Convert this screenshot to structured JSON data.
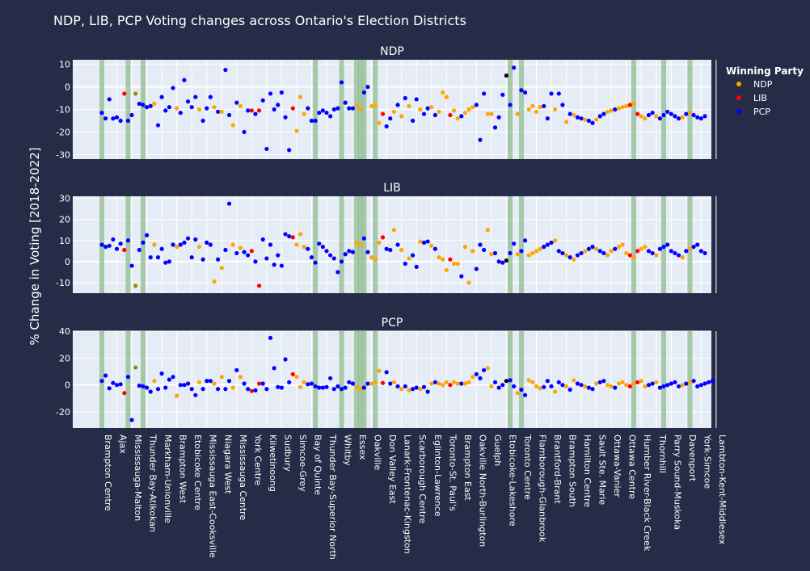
{
  "title": "NDP, LIB, PCP Voting changes across Ontario's Election Districts",
  "ylabel": "% Change in Voting [2018-2022]",
  "legend": {
    "title": "Winning Party",
    "items": [
      {
        "name": "NDP",
        "color": "#ffa500"
      },
      {
        "name": "LIB",
        "color": "#ff0000"
      },
      {
        "name": "PCP",
        "color": "#0000ff"
      }
    ]
  },
  "colors": {
    "background": "#262c47",
    "plot_bg": "#e5ecf6",
    "highlight": "#8fbc8f",
    "other": "#000000"
  },
  "chart_data": {
    "type": "scatter",
    "districts": [
      "Brampton Centre",
      "Ajax",
      "Mississauga-Malton",
      "Thunder Bay-Atikokan",
      "Markham-Unionville",
      "Brampton West",
      "Etobicoke Centre",
      "Mississauga East-Cooksville",
      "Niagara West",
      "Mississauga Centre",
      "York Centre",
      "Kiiwetinoong",
      "Sudbury",
      "Simcoe-Grey",
      "Bay of Quinte",
      "Thunder Bay-Superior North",
      "Whitby",
      "Essex",
      "Oakville",
      "Don Valley East",
      "Lanark-Frontenac-Kingston",
      "Scarborough Centre",
      "Eglinton-Lawrence",
      "Toronto-St. Paul's",
      "Brampton East",
      "Oakville North-Burlington",
      "Guelph",
      "Etobicoke-Lakeshore",
      "Toronto Centre",
      "Flamborough-Glanbrook",
      "Brantford-Brant",
      "Brampton South",
      "Hamilton Centre",
      "Sault Ste. Marie",
      "Ottawa-Vanier",
      "Ottawa Centre",
      "Humber River-Black Creek",
      "Thornhill",
      "Parry Sound-Muskoka",
      "Davenport",
      "York-Simcoe",
      "Lambton-Kent-Middlesex"
    ],
    "winners": [
      "P",
      "P",
      "P",
      "P",
      "P",
      "P",
      "L",
      "P",
      "P",
      "O",
      "P",
      "P",
      "P",
      "P",
      "N",
      "P",
      "P",
      "P",
      "P",
      "P",
      "N",
      "P",
      "P",
      "P",
      "P",
      "P",
      "N",
      "P",
      "P",
      "P",
      "N",
      "P",
      "N",
      "P",
      "P",
      "N",
      "P",
      "N",
      "P",
      "P",
      "L",
      "P",
      "L",
      "P",
      "P",
      "P",
      "P",
      "P",
      "P",
      "P",
      "P",
      "L",
      "N",
      "N",
      "N",
      "P",
      "P",
      "P",
      "P",
      "P",
      "P",
      "P",
      "P",
      "P",
      "P",
      "P",
      "P",
      "P",
      "N",
      "N",
      "P",
      "P",
      "N",
      "N",
      "N",
      "L",
      "P",
      "P",
      "N",
      "P",
      "N",
      "P",
      "N",
      "P",
      "P",
      "N",
      "P",
      "P",
      "N",
      "P",
      "N",
      "N",
      "N",
      "L",
      "N",
      "N",
      "P",
      "N",
      "N",
      "N",
      "P",
      "P",
      "P",
      "N",
      "N",
      "P",
      "P",
      "P",
      "X",
      "P",
      "P",
      "N",
      "P",
      "P",
      "N",
      "N",
      "N",
      "N",
      "P",
      "P",
      "P",
      "N",
      "P",
      "P",
      "N",
      "P",
      "N",
      "P",
      "P",
      "N",
      "P",
      "P",
      "N",
      "P",
      "P",
      "N",
      "N",
      "P",
      "N",
      "N",
      "N",
      "L",
      "N",
      "L",
      "N",
      "N",
      "P",
      "P",
      "N",
      "P",
      "P",
      "P",
      "P",
      "P",
      "P",
      "N",
      "P",
      "N",
      "P",
      "P",
      "P",
      "P",
      "P",
      "P"
    ],
    "highlights": [
      0,
      7,
      11,
      57,
      64,
      68,
      69,
      70,
      73,
      109,
      112,
      142,
      150,
      157
    ],
    "series": [
      {
        "name": "NDP",
        "ylim": [
          -32,
          12
        ],
        "yticks": [
          10,
          0,
          -10,
          -20,
          -30
        ],
        "values": [
          -11.5,
          -14,
          -5.5,
          -14,
          -13.5,
          -15,
          -3,
          -15,
          -12.5,
          -3,
          -7.5,
          -8,
          -9,
          -8.5,
          -7.5,
          -17,
          -4.5,
          -10.5,
          -9,
          -0.5,
          -9.5,
          -11.5,
          3,
          -6.5,
          -9,
          -4.5,
          -10,
          -15,
          -9.5,
          -4.5,
          -9,
          -11,
          -11,
          7.5,
          -12.5,
          -17,
          -7,
          -8.5,
          -20,
          -10.5,
          -10.5,
          -12,
          -10.5,
          -6,
          -27.5,
          -3,
          -10,
          -8,
          -2.5,
          -13.5,
          -28,
          -9.5,
          -19.5,
          -4.5,
          -12,
          -9.5,
          -15,
          -15,
          -11.5,
          -10.5,
          -11.5,
          -13,
          -10,
          -9.5,
          2,
          -7,
          -9.5,
          -9.5,
          -8,
          -10,
          -2.5,
          0,
          -8.5,
          -8,
          -16,
          -12,
          -17.5,
          -14,
          -11,
          -8,
          -13,
          -5,
          -8.5,
          -15,
          -5.5,
          -10,
          -12,
          -9.5,
          -9,
          -12.5,
          -11,
          -2.5,
          -4.5,
          -12.5,
          -10.5,
          -14,
          -13,
          -11.5,
          -10,
          -9,
          -8,
          -23.5,
          -3,
          -12,
          -12,
          -18,
          -13.5,
          -3.5,
          5,
          -8,
          8.5,
          -12,
          -1.5,
          -2.5,
          -10,
          -8.5,
          -11,
          -9,
          -8.5,
          -14,
          -3,
          -10,
          -3,
          -8,
          -15.5,
          -12,
          -12.5,
          -13.5,
          -14,
          -14.5,
          -15,
          -16,
          -14.5,
          -13,
          -12,
          -11,
          -10.5,
          -10,
          -9.5,
          -9,
          -8.5,
          -8,
          -7.5,
          -12,
          -13,
          -14,
          -12.5,
          -11.5,
          -13,
          -14,
          -12.5,
          -11,
          -12,
          -13,
          -14,
          -13.5,
          -12,
          -11.5,
          -12.5,
          -13.5,
          -14,
          -13
        ]
      },
      {
        "name": "LIB",
        "ylim": [
          -15,
          31
        ],
        "yticks": [
          30,
          20,
          10,
          0,
          -10
        ],
        "values": [
          8,
          7,
          7.5,
          10.5,
          6,
          8.5,
          5.5,
          10,
          -2,
          -11.5,
          5.5,
          9,
          12.5,
          2,
          8,
          2,
          6,
          -0.5,
          0,
          8,
          7,
          8,
          9,
          11,
          2,
          10.5,
          7,
          1,
          9,
          8,
          -9.5,
          1,
          -3,
          5.5,
          27.5,
          8,
          4,
          6.5,
          4.5,
          3,
          5,
          0,
          -11.5,
          10.5,
          1.5,
          8,
          -1.5,
          3,
          -2,
          13,
          12,
          11.5,
          8,
          13,
          7,
          6,
          2,
          -0.5,
          8.5,
          7,
          5,
          3,
          1.5,
          -5,
          0,
          3.5,
          5,
          4.5,
          9,
          8,
          11,
          4.5,
          2,
          1,
          9,
          11.5,
          6,
          5.5,
          15,
          8,
          5.5,
          -1,
          1.5,
          3,
          -2.5,
          9.5,
          9,
          9.5,
          7.5,
          6,
          2,
          1,
          -4,
          1,
          -1,
          -1,
          -7,
          7,
          -10,
          5,
          -3.5,
          8,
          5.5,
          15,
          3.5,
          4,
          0,
          -0.5,
          0.5,
          4,
          8.5,
          3.5,
          5,
          10,
          3,
          4,
          5,
          6,
          7,
          8,
          9,
          10,
          5,
          4,
          3,
          2,
          1,
          3,
          4,
          5,
          6,
          7,
          6,
          5,
          4,
          3,
          5,
          6,
          7,
          8,
          4,
          3,
          2,
          5,
          6,
          7,
          5,
          4,
          3,
          6,
          7,
          8,
          5,
          4,
          3,
          2,
          5,
          6,
          7,
          8,
          5,
          4
        ]
      },
      {
        "name": "PCP",
        "ylim": [
          -32,
          40
        ],
        "yticks": [
          40,
          20,
          0,
          -20
        ],
        "values": [
          3,
          7,
          -2.5,
          1.5,
          0,
          0.5,
          -6,
          6,
          -26,
          13,
          -0.5,
          -1,
          -2,
          -5,
          3,
          -3,
          8.5,
          -2,
          4,
          6,
          -8,
          0,
          0,
          1,
          -3,
          -7.5,
          2,
          -3,
          3,
          3,
          1,
          -3,
          6,
          -3,
          3,
          -2,
          11,
          6,
          1,
          -3,
          -4.5,
          -4,
          1,
          1,
          -3,
          35,
          12.5,
          -1.5,
          -2,
          19,
          2,
          8,
          6,
          -1.5,
          2,
          0.5,
          1,
          -1,
          -2,
          -2,
          -1.5,
          5,
          -3,
          -1,
          -3,
          -2,
          2,
          1,
          -1.5,
          -3,
          -2,
          1,
          1,
          2,
          10.5,
          1.5,
          9.5,
          1,
          2,
          -1,
          -3,
          -1,
          -4,
          -3,
          -2,
          -3,
          -1.5,
          -5,
          1,
          2,
          1,
          0,
          2,
          0,
          2,
          1,
          1,
          1,
          2,
          6,
          8,
          5,
          11,
          12.5,
          -1,
          2,
          -2,
          0,
          3,
          3.5,
          -1,
          -6,
          -3.5,
          -7.5,
          3.5,
          2,
          -1,
          -2.5,
          -1.5,
          3,
          -1,
          -5,
          2,
          0,
          -1,
          -3.5,
          3.5,
          1,
          0,
          -1,
          -2,
          -3,
          1,
          2,
          3,
          0,
          -1,
          -2,
          1,
          2,
          0,
          -1,
          1,
          2,
          3,
          -1,
          0,
          1,
          2,
          -2,
          -1,
          0,
          1,
          2,
          -1,
          0,
          1,
          2,
          3,
          -1,
          0,
          1,
          2,
          3
        ]
      }
    ]
  }
}
